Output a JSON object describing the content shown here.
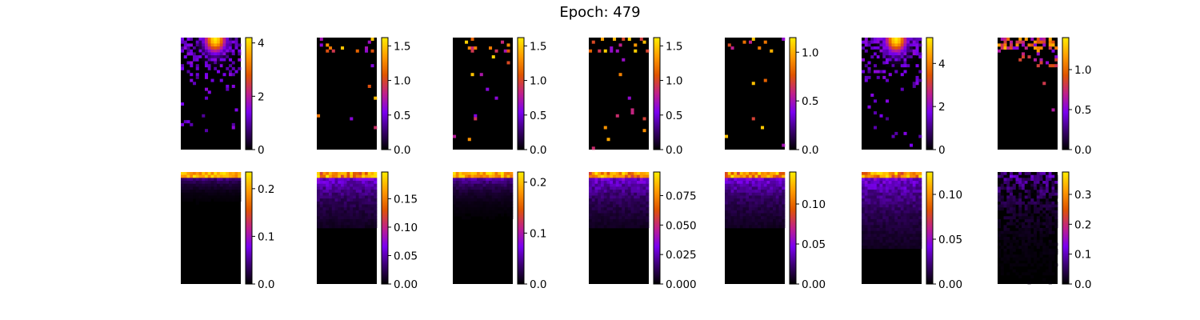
{
  "figure": {
    "title": "Epoch: 479"
  },
  "colormap": {
    "name": "gnuplot",
    "stops": [
      "#000000",
      "#3a0070",
      "#7a00f0",
      "#c0208a",
      "#e05500",
      "#ff9c00",
      "#ffee00"
    ]
  },
  "chart_data": [
    {
      "type": "heatmap",
      "row": 0,
      "col": 0,
      "pattern": "sparse-hotspot",
      "vmin": 0,
      "vmax": 4.2,
      "ticks": [
        0,
        2,
        4
      ],
      "tick_labels": [
        "0",
        "2",
        "4"
      ]
    },
    {
      "type": "heatmap",
      "row": 0,
      "col": 1,
      "pattern": "sparse",
      "vmin": 0,
      "vmax": 1.62,
      "ticks": [
        0,
        0.5,
        1.0,
        1.5
      ],
      "tick_labels": [
        "0.0",
        "0.5",
        "1.0",
        "1.5"
      ]
    },
    {
      "type": "heatmap",
      "row": 0,
      "col": 2,
      "pattern": "sparse",
      "vmin": 0,
      "vmax": 1.62,
      "ticks": [
        0,
        0.5,
        1.0,
        1.5
      ],
      "tick_labels": [
        "0.0",
        "0.5",
        "1.0",
        "1.5"
      ]
    },
    {
      "type": "heatmap",
      "row": 0,
      "col": 3,
      "pattern": "sparse",
      "vmin": 0,
      "vmax": 1.62,
      "ticks": [
        0,
        0.5,
        1.0,
        1.5
      ],
      "tick_labels": [
        "0.0",
        "0.5",
        "1.0",
        "1.5"
      ]
    },
    {
      "type": "heatmap",
      "row": 0,
      "col": 4,
      "pattern": "sparse",
      "vmin": 0,
      "vmax": 1.15,
      "ticks": [
        0,
        0.5,
        1.0
      ],
      "tick_labels": [
        "0.0",
        "0.5",
        "1.0"
      ]
    },
    {
      "type": "heatmap",
      "row": 0,
      "col": 5,
      "pattern": "sparse-hotspot",
      "vmin": 0,
      "vmax": 5.2,
      "ticks": [
        0,
        2,
        4
      ],
      "tick_labels": [
        "0",
        "2",
        "4"
      ]
    },
    {
      "type": "heatmap",
      "row": 0,
      "col": 6,
      "pattern": "sparse-dense-top",
      "vmin": 0,
      "vmax": 1.4,
      "ticks": [
        0,
        0.5,
        1.0
      ],
      "tick_labels": [
        "0.0",
        "0.5",
        "1.0"
      ]
    },
    {
      "type": "heatmap",
      "row": 1,
      "col": 0,
      "pattern": "top-band",
      "vmin": 0,
      "vmax": 0.235,
      "ticks": [
        0,
        0.1,
        0.2
      ],
      "tick_labels": [
        "0.0",
        "0.1",
        "0.2"
      ]
    },
    {
      "type": "heatmap",
      "row": 1,
      "col": 1,
      "pattern": "gradient-deep",
      "vmin": 0,
      "vmax": 0.197,
      "ticks": [
        0,
        0.05,
        0.1,
        0.15
      ],
      "tick_labels": [
        "0.00",
        "0.05",
        "0.10",
        "0.15"
      ]
    },
    {
      "type": "heatmap",
      "row": 1,
      "col": 2,
      "pattern": "top-band-mid",
      "vmin": 0,
      "vmax": 0.22,
      "ticks": [
        0,
        0.1,
        0.2
      ],
      "tick_labels": [
        "0.0",
        "0.1",
        "0.2"
      ]
    },
    {
      "type": "heatmap",
      "row": 1,
      "col": 3,
      "pattern": "gradient-deep",
      "vmin": 0,
      "vmax": 0.095,
      "ticks": [
        0,
        0.025,
        0.05,
        0.075
      ],
      "tick_labels": [
        "0.000",
        "0.025",
        "0.050",
        "0.075"
      ]
    },
    {
      "type": "heatmap",
      "row": 1,
      "col": 4,
      "pattern": "gradient-deep",
      "vmin": 0,
      "vmax": 0.14,
      "ticks": [
        0,
        0.05,
        0.1
      ],
      "tick_labels": [
        "0.00",
        "0.05",
        "0.10"
      ]
    },
    {
      "type": "heatmap",
      "row": 1,
      "col": 5,
      "pattern": "gradient-deepest",
      "vmin": 0,
      "vmax": 0.125,
      "ticks": [
        0,
        0.05,
        0.1
      ],
      "tick_labels": [
        "0.00",
        "0.05",
        "0.10"
      ]
    },
    {
      "type": "heatmap",
      "row": 1,
      "col": 6,
      "pattern": "noisy-top",
      "vmin": 0,
      "vmax": 0.375,
      "ticks": [
        0,
        0.1,
        0.2,
        0.3
      ],
      "tick_labels": [
        "0.0",
        "0.1",
        "0.2",
        "0.3"
      ]
    }
  ]
}
